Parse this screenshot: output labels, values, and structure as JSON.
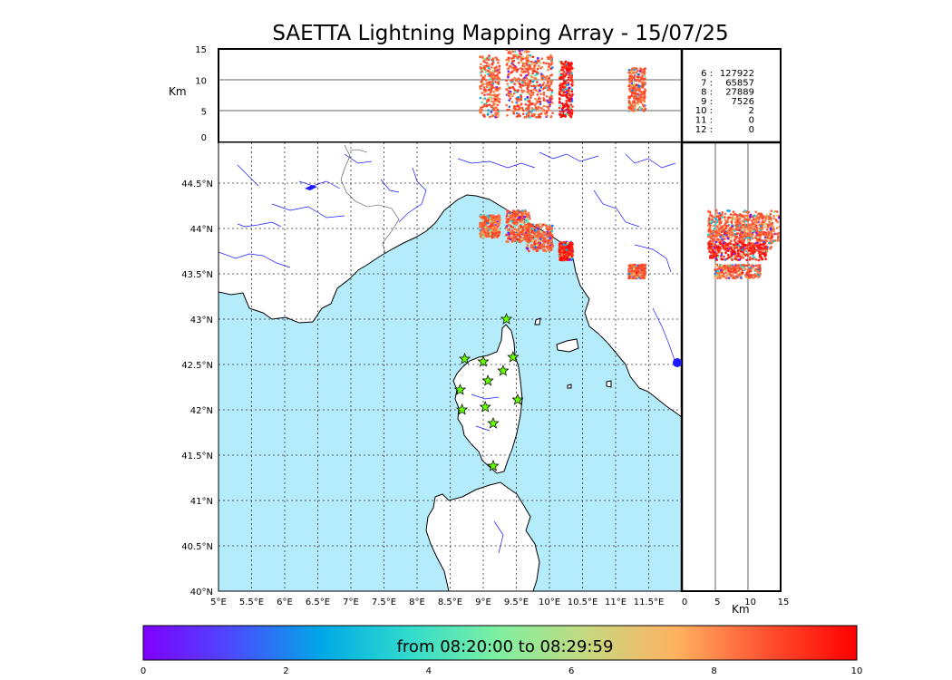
{
  "title": "SAETTA Lightning Mapping Array - 15/07/25",
  "map": {
    "lon_ticks": [
      "5°E",
      "5.5°E",
      "6°E",
      "6.5°E",
      "7°E",
      "7.5°E",
      "8°E",
      "8.5°E",
      "9°E",
      "9.5°E",
      "10°E",
      "10.5°E",
      "11°E",
      "11.5°E"
    ],
    "lat_ticks": [
      "40°N",
      "40.5°N",
      "41°N",
      "41.5°N",
      "42°N",
      "42.5°N",
      "43°N",
      "43.5°N",
      "44°N",
      "44.5°N"
    ],
    "lon_range": [
      5,
      12
    ],
    "lat_range": [
      40,
      44.95
    ],
    "sea_color": "#b5ecfb",
    "land_color": "#ffffff",
    "river_color": "#1a1aff",
    "border_color": "#444444",
    "grid": "dotted",
    "stations": [
      {
        "lon": 9.35,
        "lat": 43.0
      },
      {
        "lon": 8.72,
        "lat": 42.56
      },
      {
        "lon": 9.0,
        "lat": 42.53
      },
      {
        "lon": 9.45,
        "lat": 42.58
      },
      {
        "lon": 9.3,
        "lat": 42.43
      },
      {
        "lon": 9.07,
        "lat": 42.32
      },
      {
        "lon": 8.65,
        "lat": 42.22
      },
      {
        "lon": 9.52,
        "lat": 42.11
      },
      {
        "lon": 9.03,
        "lat": 42.03
      },
      {
        "lon": 8.68,
        "lat": 42.0
      },
      {
        "lon": 9.15,
        "lat": 41.85
      },
      {
        "lon": 9.15,
        "lat": 41.38
      }
    ],
    "station_color": "#66ff00"
  },
  "altitude_top": {
    "ylabel": "Km",
    "yticks": [
      "0",
      "5",
      "10",
      "15"
    ],
    "range": [
      0,
      15
    ]
  },
  "altitude_right": {
    "xlabel": "Km",
    "xticks": [
      "0",
      "5",
      "10",
      "15"
    ],
    "range": [
      0,
      15
    ]
  },
  "counts": [
    {
      "label": "6 :",
      "value": "127922",
      "color": "#000000"
    },
    {
      "label": "7 :",
      "value": "65857",
      "color": "#ff0000"
    },
    {
      "label": "8 :",
      "value": "27889",
      "color": "#000000"
    },
    {
      "label": "9 :",
      "value": "7526",
      "color": "#000000"
    },
    {
      "label": "10 :",
      "value": "2",
      "color": "#000000"
    },
    {
      "label": "11 :",
      "value": "0",
      "color": "#000000"
    },
    {
      "label": "12 :",
      "value": "0",
      "color": "#000000"
    }
  ],
  "colorbar": {
    "label": "from 08:20:00 to 08:29:59",
    "ticks": [
      "0",
      "2",
      "4",
      "6",
      "8",
      "10"
    ],
    "range": [
      0,
      10
    ],
    "stops": [
      "#7f00ff",
      "#4b4bff",
      "#00a8e6",
      "#33dccc",
      "#80f0a0",
      "#c8d880",
      "#ffb060",
      "#ff5030",
      "#ff0000"
    ]
  },
  "chart_data": {
    "type": "scatter",
    "title": "SAETTA Lightning Mapping Array - 15/07/25",
    "xlabel": "",
    "ylabel": "",
    "xlim": [
      5,
      12
    ],
    "ylim": [
      40,
      44.95
    ],
    "grid": true,
    "clusters": [
      {
        "lon_range": [
          8.95,
          9.25
        ],
        "lat_range": [
          43.9,
          44.15
        ],
        "alt_range": [
          4,
          14
        ],
        "time": 8
      },
      {
        "lon_range": [
          9.35,
          9.7
        ],
        "lat_range": [
          43.85,
          44.2
        ],
        "alt_range": [
          4,
          15
        ],
        "time": 8
      },
      {
        "lon_range": [
          9.65,
          10.05
        ],
        "lat_range": [
          43.75,
          44.05
        ],
        "alt_range": [
          4,
          14
        ],
        "time": 8
      },
      {
        "lon_range": [
          10.15,
          10.35
        ],
        "lat_range": [
          43.65,
          43.85
        ],
        "alt_range": [
          4,
          13
        ],
        "time": 9
      },
      {
        "lon_range": [
          11.2,
          11.45
        ],
        "lat_range": [
          43.45,
          43.6
        ],
        "alt_range": [
          5,
          12
        ],
        "time": 8
      }
    ]
  }
}
